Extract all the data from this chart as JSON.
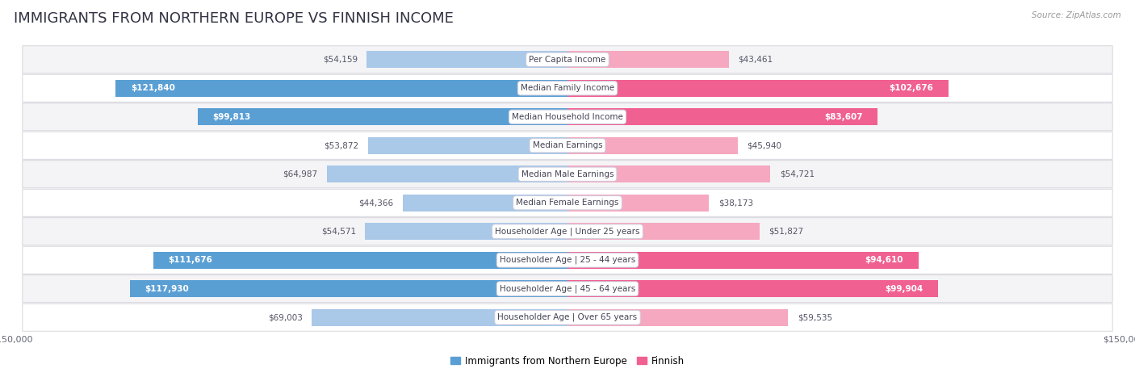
{
  "title": "IMMIGRANTS FROM NORTHERN EUROPE VS FINNISH INCOME",
  "source": "Source: ZipAtlas.com",
  "categories": [
    "Per Capita Income",
    "Median Family Income",
    "Median Household Income",
    "Median Earnings",
    "Median Male Earnings",
    "Median Female Earnings",
    "Householder Age | Under 25 years",
    "Householder Age | 25 - 44 years",
    "Householder Age | 45 - 64 years",
    "Householder Age | Over 65 years"
  ],
  "immigrants_values": [
    54159,
    121840,
    99813,
    53872,
    64987,
    44366,
    54571,
    111676,
    117930,
    69003
  ],
  "finnish_values": [
    43461,
    102676,
    83607,
    45940,
    54721,
    38173,
    51827,
    94610,
    99904,
    59535
  ],
  "imm_color_light": "#aac8e8",
  "imm_color_dark": "#5a9fd4",
  "fin_color_light": "#f5a8bf",
  "fin_color_dark": "#f06090",
  "imm_inside_threshold": 80000,
  "fin_inside_threshold": 70000,
  "row_bg_light": "#f4f4f6",
  "row_bg_dark": "#e8e8ee",
  "max_value": 150000,
  "legend_label_immigrants": "Immigrants from Northern Europe",
  "legend_label_finnish": "Finnish",
  "title_fontsize": 13,
  "value_fontsize": 7.5,
  "category_fontsize": 7.5,
  "axis_label_fontsize": 8,
  "bar_height": 0.58,
  "inside_threshold": 75000
}
